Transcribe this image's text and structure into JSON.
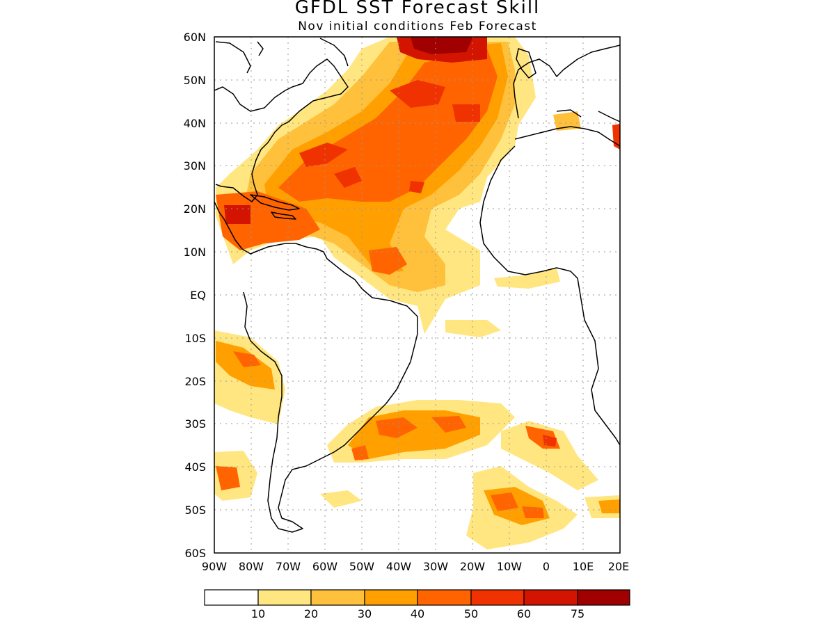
{
  "title": "GFDL SST Forecast Skill",
  "subtitle": "Nov initial conditions  Feb Forecast",
  "map": {
    "lon_range": [
      -90,
      20
    ],
    "lat_range": [
      -60,
      60
    ],
    "lat_labels": [
      "60N",
      "50N",
      "40N",
      "30N",
      "20N",
      "10N",
      "EQ",
      "10S",
      "20S",
      "30S",
      "40S",
      "50S",
      "60S"
    ],
    "lon_labels": [
      "90W",
      "80W",
      "70W",
      "60W",
      "50W",
      "40W",
      "30W",
      "20W",
      "10W",
      "0",
      "10E",
      "20E"
    ],
    "gridlines": "dotted",
    "coastline_color": "#000000"
  },
  "colorbar": {
    "levels": [
      "10",
      "20",
      "30",
      "40",
      "50",
      "60",
      "75"
    ],
    "colors": [
      "#ffffff",
      "#ffe680",
      "#ffc03c",
      "#ffa000",
      "#ff6400",
      "#f03200",
      "#d21400",
      "#a00000"
    ]
  }
}
